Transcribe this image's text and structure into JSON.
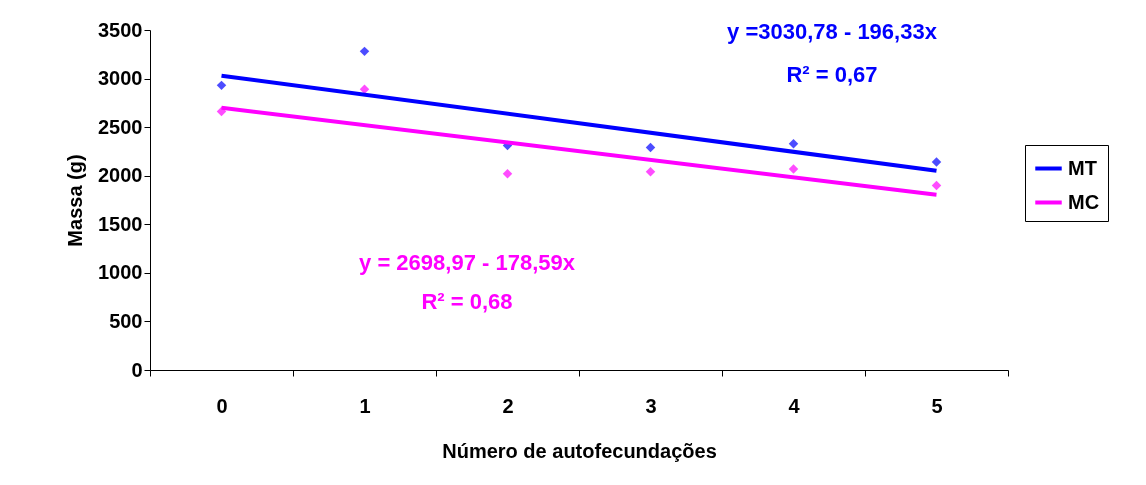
{
  "chart_data": {
    "type": "scatter",
    "xlabel": "Número de autofecundações",
    "ylabel": "Massa (g)",
    "categories": [
      "0",
      "1",
      "2",
      "3",
      "4",
      "5"
    ],
    "series": [
      {
        "color": "#0000ff",
        "marker": "diamond",
        "values": [
          2930,
          3280,
          2310,
          2290,
          2330,
          2140
        ]
      },
      {
        "color": "#ff00ff",
        "marker": "diamond",
        "values": [
          2660,
          2890,
          2020,
          2040,
          2070,
          1900
        ]
      },
      {
        "name": "MT",
        "type": "line",
        "color": "#0000ff",
        "x": [
          "0",
          "5"
        ],
        "values": [
          3030,
          2050
        ]
      },
      {
        "name": "MC",
        "type": "line",
        "color": "#ff00ff",
        "x": [
          "0",
          "5"
        ],
        "values": [
          2700,
          1805
        ]
      }
    ],
    "ylim": [
      0,
      3500
    ],
    "yticks": [
      0,
      500,
      1000,
      1500,
      2000,
      2500,
      3000,
      3500
    ],
    "annotations": [
      "y =3030,78 - 196,33x",
      "R² = 0,67",
      "y = 2698,97 - 178,59x",
      "R² = 0,68"
    ],
    "legend": "right",
    "grid": false
  }
}
